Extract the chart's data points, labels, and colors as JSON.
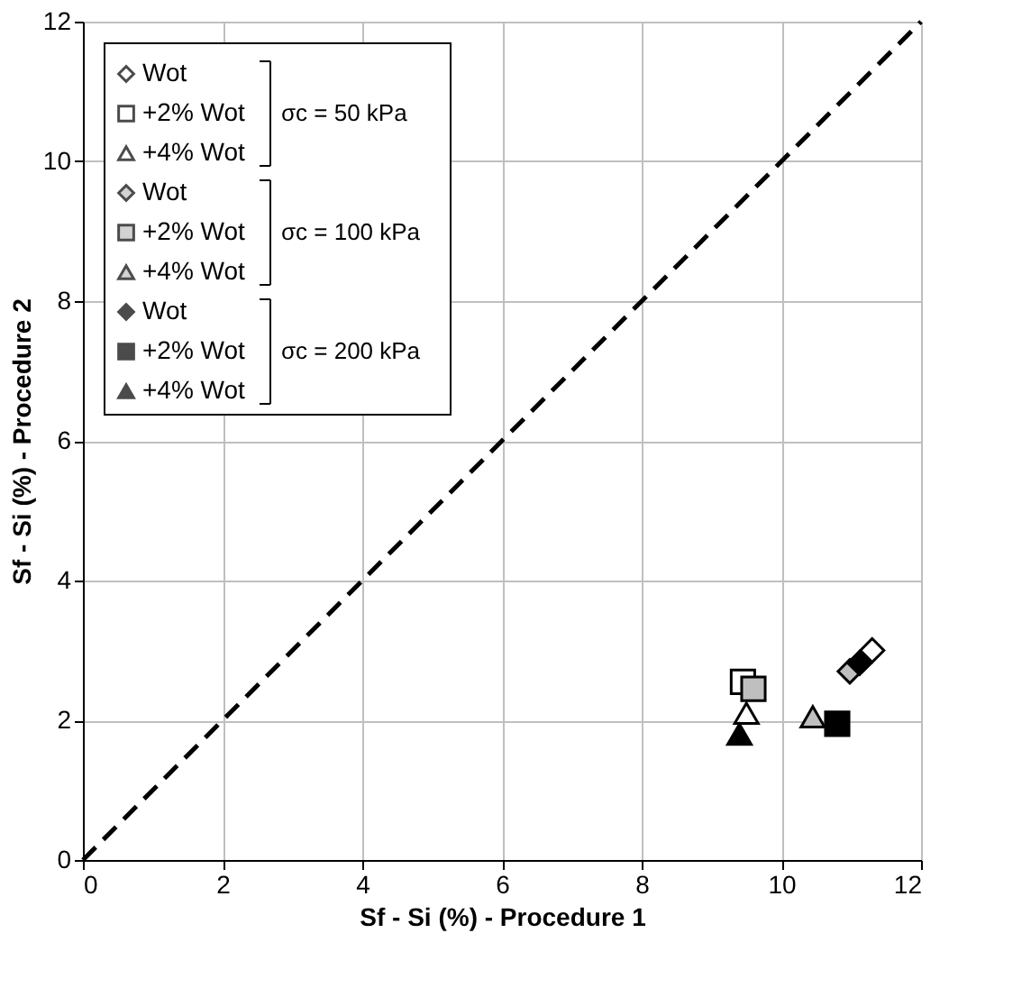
{
  "chart_data": {
    "type": "scatter",
    "xlabel": "Sf - Si (%)   - Procedure 1",
    "ylabel": "Sf - Si (%)   - Procedure 2",
    "xlim": [
      0,
      12
    ],
    "ylim": [
      0,
      12
    ],
    "xticks": [
      0,
      2,
      4,
      6,
      8,
      10,
      12
    ],
    "yticks": [
      0,
      2,
      4,
      6,
      8,
      10,
      12
    ],
    "grid": true,
    "legend": "top left",
    "annotations": [
      "σc = 50 kPa",
      "σc = 100 kPa",
      "σc = 200 kPa"
    ],
    "series": [
      {
        "name": "Wot",
        "color": "#ffffff",
        "marker": "diamond",
        "x": [
          11.3
        ],
        "values": [
          3.0
        ]
      },
      {
        "name": "+2% Wot",
        "color": "#ffffff",
        "marker": "square",
        "x": [
          9.45
        ],
        "values": [
          2.55
        ]
      },
      {
        "name": "+4% Wot",
        "color": "#ffffff",
        "marker": "triangle",
        "x": [
          9.5
        ],
        "values": [
          2.1
        ]
      },
      {
        "name": "Wot",
        "color": "#bfbfbf",
        "marker": "diamond",
        "x": [
          10.98
        ],
        "values": [
          2.7
        ]
      },
      {
        "name": "+2% Wot",
        "color": "#bfbfbf",
        "marker": "square",
        "x": [
          9.6
        ],
        "values": [
          2.45
        ]
      },
      {
        "name": "+4% Wot",
        "color": "#bfbfbf",
        "marker": "triangle",
        "x": [
          10.45
        ],
        "values": [
          2.05
        ]
      },
      {
        "name": "Wot",
        "color": "#000000",
        "marker": "diamond",
        "x": [
          11.12
        ],
        "values": [
          2.82
        ]
      },
      {
        "name": "+2% Wot",
        "color": "#000000",
        "marker": "square",
        "x": [
          10.8
        ],
        "values": [
          1.95
        ]
      },
      {
        "name": "+4% Wot",
        "color": "#000000",
        "marker": "triangle",
        "x": [
          9.4
        ],
        "values": [
          1.8
        ]
      },
      {
        "type": "line",
        "color": "#000000",
        "line_style": "dashed",
        "marker": "none",
        "x": [
          0,
          12
        ],
        "values": [
          0,
          12
        ]
      }
    ]
  }
}
